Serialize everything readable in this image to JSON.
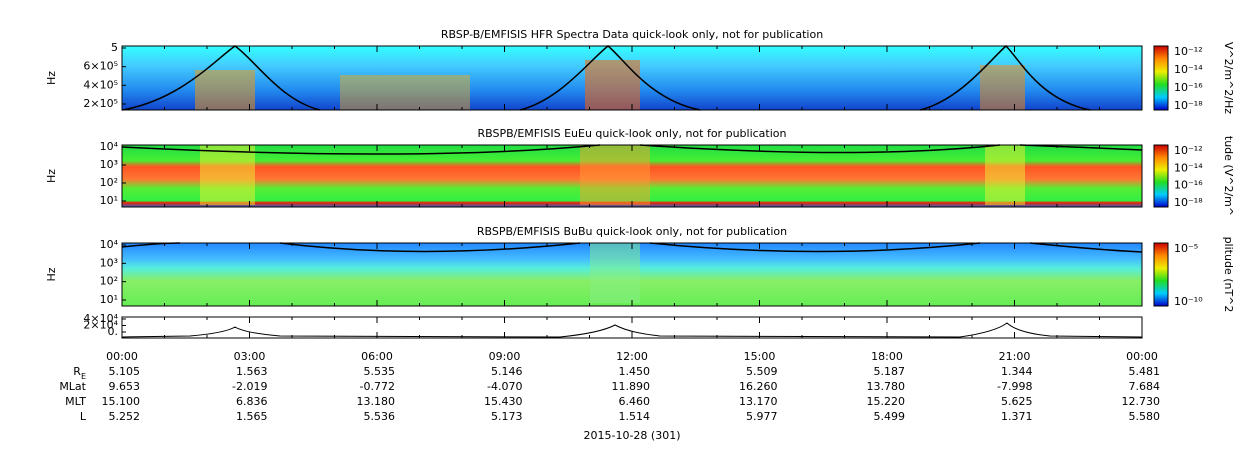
{
  "panels": [
    {
      "title": "RBSP-B/EMFISIS  HFR Spectra Data quick-look only, not for publication",
      "ylabel": "Hz",
      "yticks": [
        "5",
        "6×10⁵",
        "4×10⁵",
        "2×10⁵"
      ],
      "cbar_label": "V^2/m^2/Hz",
      "cbar_ticks": [
        "10⁻¹²",
        "10⁻¹⁴",
        "10⁻¹⁶",
        "10⁻¹⁸"
      ]
    },
    {
      "title": "RBSPB/EMFISIS  EuEu quick-look only, not for publication",
      "ylabel": "Hz",
      "yticks": [
        "10⁴",
        "10³",
        "10²",
        "10¹"
      ],
      "cbar_label": "tude (V^2/m^",
      "cbar_ticks": [
        "10⁻¹²",
        "10⁻¹⁴",
        "10⁻¹⁶",
        "10⁻¹⁸"
      ]
    },
    {
      "title": "RBSPB/EMFISIS  BuBu quick-look only, not for publication",
      "ylabel": "Hz",
      "yticks": [
        "10⁴",
        "10³",
        "10²",
        "10¹"
      ],
      "cbar_label": "plitude (nT^2",
      "cbar_ticks": [
        "10⁻⁵",
        "10⁻¹⁰"
      ]
    },
    {
      "yticks": [
        "4×10⁴",
        "2×10⁴",
        "0."
      ]
    }
  ],
  "times": [
    "00:00",
    "03:00",
    "06:00",
    "09:00",
    "12:00",
    "15:00",
    "18:00",
    "21:00",
    "00:00"
  ],
  "rows": [
    {
      "label": "R",
      "sub": "E",
      "values": [
        "5.105",
        "1.563",
        "5.535",
        "5.146",
        "1.450",
        "5.509",
        "5.187",
        "1.344",
        "5.481"
      ]
    },
    {
      "label": "MLat",
      "values": [
        "9.653",
        "-2.019",
        "-0.772",
        "-4.070",
        "11.890",
        "16.260",
        "13.780",
        "-7.998",
        "7.684"
      ]
    },
    {
      "label": "MLT",
      "values": [
        "15.100",
        "6.836",
        "13.180",
        "15.430",
        "6.460",
        "13.170",
        "15.220",
        "5.625",
        "12.730"
      ]
    },
    {
      "label": "L",
      "values": [
        "5.252",
        "1.565",
        "5.536",
        "5.173",
        "1.514",
        "5.977",
        "5.499",
        "1.371",
        "5.580"
      ]
    }
  ],
  "footer": "2015-10-28 (301)"
}
